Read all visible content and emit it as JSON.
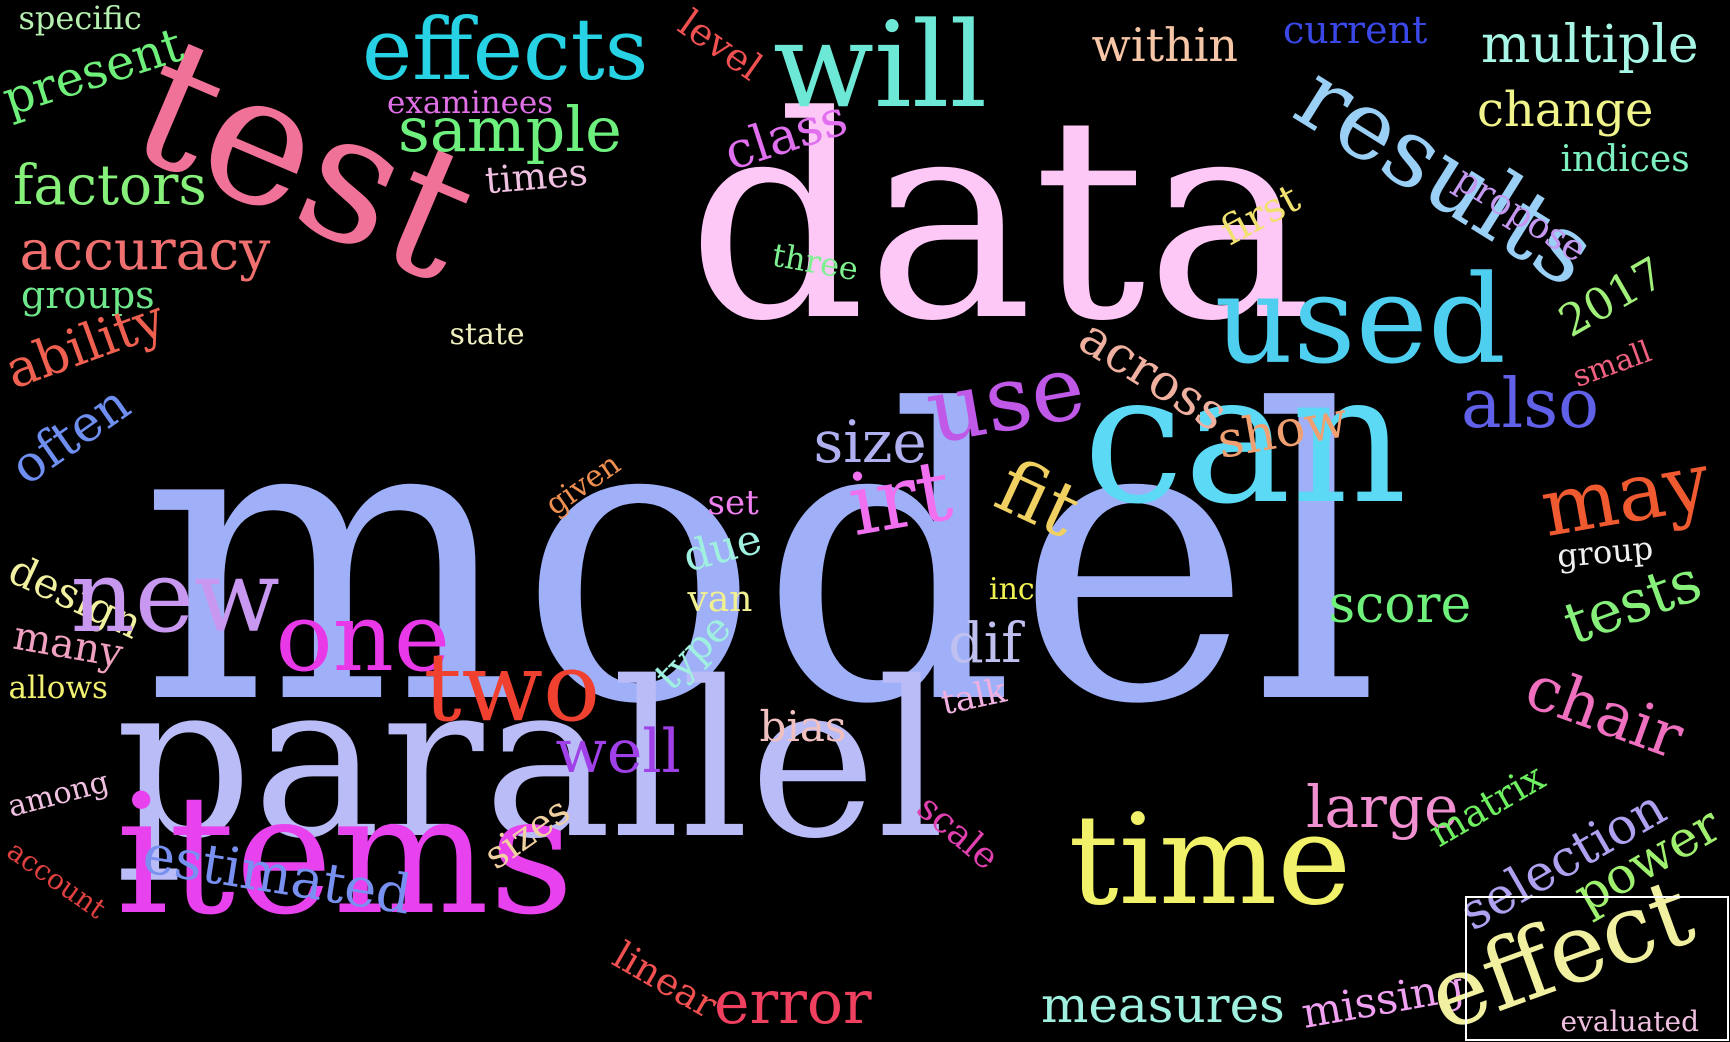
{
  "words": [
    {
      "text": "model",
      "color": "#9fb0f8"
    },
    {
      "text": "data",
      "color": "#fdc8f6"
    },
    {
      "text": "parallel",
      "color": "#b9bcf6"
    },
    {
      "text": "test",
      "color": "#f07298"
    },
    {
      "text": "items",
      "color": "#e842ee"
    },
    {
      "text": "can",
      "color": "#5cd9f4"
    },
    {
      "text": "effects",
      "color": "#26d2e4"
    },
    {
      "text": "will",
      "color": "#6ee8d6"
    },
    {
      "text": "results",
      "color": "#9ad0f6"
    },
    {
      "text": "used",
      "color": "#4fcff0"
    },
    {
      "text": "time",
      "color": "#f2f26a"
    },
    {
      "text": "sample",
      "color": "#6ef07e"
    },
    {
      "text": "multiple",
      "color": "#a8f6e6"
    },
    {
      "text": "change",
      "color": "#f0f48a"
    },
    {
      "text": "indices",
      "color": "#7ef0c0"
    },
    {
      "text": "propose",
      "color": "#c498f0"
    },
    {
      "text": "examinees",
      "color": "#e070e6"
    },
    {
      "text": "level",
      "color": "#f05050"
    },
    {
      "text": "within",
      "color": "#f6c6a6"
    },
    {
      "text": "current",
      "color": "#3a48e8"
    },
    {
      "text": "specific",
      "color": "#b6f0b0"
    },
    {
      "text": "present",
      "color": "#6ef07a"
    },
    {
      "text": "factors",
      "color": "#86f07a"
    },
    {
      "text": "accuracy",
      "color": "#f07070"
    },
    {
      "text": "groups",
      "color": "#6ee88a"
    },
    {
      "text": "ability",
      "color": "#f06050"
    },
    {
      "text": "often",
      "color": "#6e8ef0"
    },
    {
      "text": "design",
      "color": "#f0f0a0"
    },
    {
      "text": "many",
      "color": "#f0a0c0"
    },
    {
      "text": "allows",
      "color": "#f0f070"
    },
    {
      "text": "among",
      "color": "#f0c0e0"
    },
    {
      "text": "account",
      "color": "#e04040"
    },
    {
      "text": "class",
      "color": "#e070f0"
    },
    {
      "text": "times",
      "color": "#f0c0e0"
    },
    {
      "text": "three",
      "color": "#7ef090"
    },
    {
      "text": "state",
      "color": "#f0f0c0"
    },
    {
      "text": "first",
      "color": "#f0e070"
    },
    {
      "text": "2017",
      "color": "#a0f07a"
    },
    {
      "text": "small",
      "color": "#f06080"
    },
    {
      "text": "across",
      "color": "#f0b0a0"
    },
    {
      "text": "show",
      "color": "#f0a070"
    },
    {
      "text": "also",
      "color": "#6060e8"
    },
    {
      "text": "may",
      "color": "#f05a30"
    },
    {
      "text": "group",
      "color": "#f0f0f0"
    },
    {
      "text": "tests",
      "color": "#86f07a"
    },
    {
      "text": "chair",
      "color": "#f070c0"
    },
    {
      "text": "use",
      "color": "#c058e8"
    },
    {
      "text": "size",
      "color": "#b0b0f0"
    },
    {
      "text": "irt",
      "color": "#f070f0"
    },
    {
      "text": "fit",
      "color": "#f0d060"
    },
    {
      "text": "given",
      "color": "#f09050"
    },
    {
      "text": "set",
      "color": "#f080f0"
    },
    {
      "text": "due",
      "color": "#a0f0e0"
    },
    {
      "text": "van",
      "color": "#f0f090"
    },
    {
      "text": "type",
      "color": "#a0f0e0"
    },
    {
      "text": "inc",
      "color": "#f0f050"
    },
    {
      "text": "dif",
      "color": "#c0c0f0"
    },
    {
      "text": "talk",
      "color": "#f0b0e0"
    },
    {
      "text": "new",
      "color": "#c898f0"
    },
    {
      "text": "one",
      "color": "#e838e8"
    },
    {
      "text": "two",
      "color": "#f04030"
    },
    {
      "text": "well",
      "color": "#a040e8"
    },
    {
      "text": "bias",
      "color": "#f0c0c0"
    },
    {
      "text": "score",
      "color": "#6ef07a"
    },
    {
      "text": "large",
      "color": "#f090d0"
    },
    {
      "text": "estimated",
      "color": "#7890f0"
    },
    {
      "text": "sizes",
      "color": "#f0d0a0"
    },
    {
      "text": "scale",
      "color": "#e040b0"
    },
    {
      "text": "linear",
      "color": "#f05050"
    },
    {
      "text": "error",
      "color": "#f04060"
    },
    {
      "text": "measures",
      "color": "#a0f0e0"
    },
    {
      "text": "missing",
      "color": "#f0a0f0"
    },
    {
      "text": "matrix",
      "color": "#6ef060"
    },
    {
      "text": "selection",
      "color": "#b0a0f0"
    },
    {
      "text": "power",
      "color": "#a0f070"
    },
    {
      "text": "effect",
      "color": "#f0f0a0"
    },
    {
      "text": "evaluated",
      "color": "#f0c0e0"
    }
  ]
}
